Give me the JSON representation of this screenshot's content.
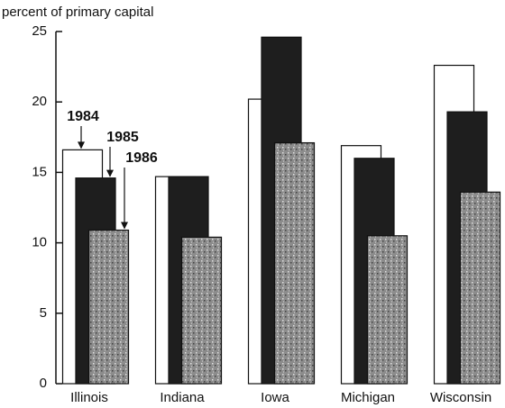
{
  "chart_data": {
    "type": "bar",
    "y_label": "percent of primary capital",
    "categories": [
      "Illinois",
      "Indiana",
      "Iowa",
      "Michigan",
      "Wisconsin"
    ],
    "series": [
      {
        "name": "1984",
        "color": "#ffffff",
        "values": [
          16.6,
          14.7,
          20.2,
          16.9,
          22.6
        ]
      },
      {
        "name": "1985",
        "color": "#1e1e1e",
        "values": [
          14.6,
          14.7,
          24.6,
          16.0,
          19.3
        ]
      },
      {
        "name": "1986",
        "color": "#9a9a9a",
        "values": [
          10.9,
          10.4,
          17.1,
          10.5,
          13.6
        ]
      }
    ],
    "ylim": [
      0,
      25
    ],
    "yticks": [
      0,
      5,
      10,
      15,
      20,
      25
    ]
  }
}
